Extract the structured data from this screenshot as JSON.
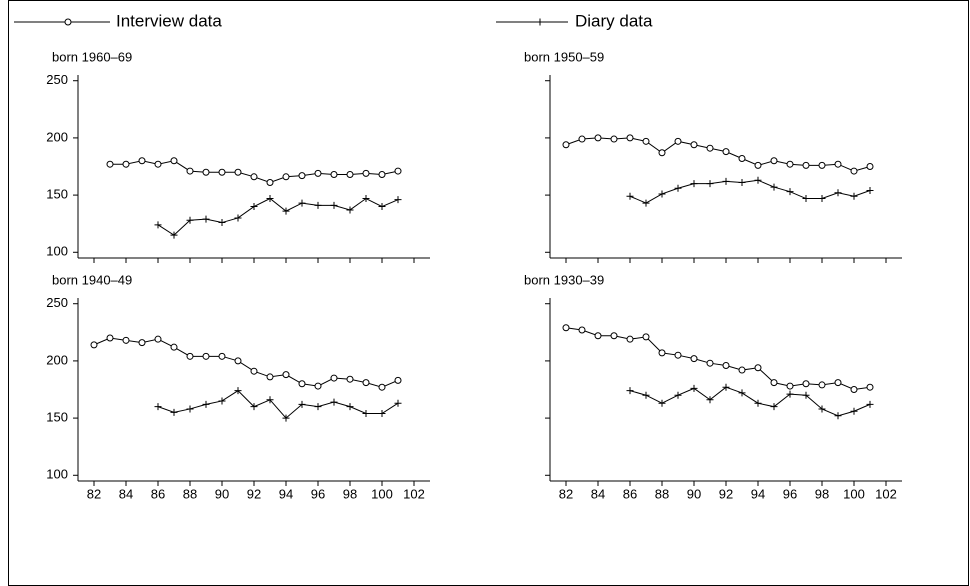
{
  "chart_data": [
    {
      "type": "line",
      "title": "born 1960–69",
      "show_xtick_labels": false,
      "show_ytick_labels": true,
      "x": [
        82,
        83,
        84,
        85,
        86,
        87,
        88,
        89,
        90,
        91,
        92,
        93,
        94,
        95,
        96,
        97,
        98,
        99,
        100,
        101
      ],
      "xlim": [
        81,
        103
      ],
      "xticks": [
        82,
        84,
        86,
        88,
        90,
        92,
        94,
        96,
        98,
        100,
        102
      ],
      "ylim": [
        95,
        255
      ],
      "yticks": [
        100,
        150,
        200,
        250
      ],
      "series": [
        {
          "name": "Interview data",
          "color": "#000000",
          "marker": "circle",
          "values": [
            null,
            177,
            177,
            180,
            177,
            180,
            171,
            170,
            170,
            170,
            166,
            161,
            166,
            167,
            169,
            168,
            168,
            169,
            168,
            171
          ]
        },
        {
          "name": "Diary data",
          "color": "#000000",
          "marker": "plus",
          "values": [
            null,
            null,
            null,
            null,
            124,
            115,
            128,
            129,
            126,
            130,
            140,
            147,
            136,
            143,
            141,
            141,
            137,
            147,
            140,
            146
          ]
        }
      ]
    },
    {
      "type": "line",
      "title": "born 1950–59",
      "show_xtick_labels": false,
      "show_ytick_labels": false,
      "x": [
        82,
        83,
        84,
        85,
        86,
        87,
        88,
        89,
        90,
        91,
        92,
        93,
        94,
        95,
        96,
        97,
        98,
        99,
        100,
        101
      ],
      "xlim": [
        81,
        103
      ],
      "xticks": [
        82,
        84,
        86,
        88,
        90,
        92,
        94,
        96,
        98,
        100,
        102
      ],
      "ylim": [
        95,
        255
      ],
      "yticks": [
        100,
        150,
        200,
        250
      ],
      "series": [
        {
          "name": "Interview data",
          "color": "#000000",
          "marker": "circle",
          "values": [
            194,
            199,
            200,
            199,
            200,
            197,
            187,
            197,
            194,
            191,
            188,
            182,
            176,
            180,
            177,
            176,
            176,
            177,
            171,
            175
          ]
        },
        {
          "name": "Diary data",
          "color": "#000000",
          "marker": "plus",
          "values": [
            null,
            null,
            null,
            null,
            149,
            143,
            151,
            156,
            160,
            160,
            162,
            161,
            163,
            157,
            153,
            147,
            147,
            152,
            149,
            154
          ]
        }
      ]
    },
    {
      "type": "line",
      "title": "born 1940–49",
      "show_xtick_labels": true,
      "show_ytick_labels": true,
      "x": [
        82,
        83,
        84,
        85,
        86,
        87,
        88,
        89,
        90,
        91,
        92,
        93,
        94,
        95,
        96,
        97,
        98,
        99,
        100,
        101
      ],
      "xlim": [
        81,
        103
      ],
      "xticks": [
        82,
        84,
        86,
        88,
        90,
        92,
        94,
        96,
        98,
        100,
        102
      ],
      "ylim": [
        95,
        255
      ],
      "yticks": [
        100,
        150,
        200,
        250
      ],
      "series": [
        {
          "name": "Interview data",
          "color": "#000000",
          "marker": "circle",
          "values": [
            214,
            220,
            218,
            216,
            219,
            212,
            204,
            204,
            204,
            200,
            191,
            186,
            188,
            180,
            178,
            185,
            184,
            181,
            177,
            183
          ]
        },
        {
          "name": "Diary data",
          "color": "#000000",
          "marker": "plus",
          "values": [
            null,
            null,
            null,
            null,
            160,
            155,
            158,
            162,
            165,
            174,
            160,
            166,
            150,
            162,
            160,
            164,
            160,
            154,
            154,
            163
          ]
        }
      ]
    },
    {
      "type": "line",
      "title": "born 1930–39",
      "show_xtick_labels": true,
      "show_ytick_labels": false,
      "x": [
        82,
        83,
        84,
        85,
        86,
        87,
        88,
        89,
        90,
        91,
        92,
        93,
        94,
        95,
        96,
        97,
        98,
        99,
        100,
        101
      ],
      "xlim": [
        81,
        103
      ],
      "xticks": [
        82,
        84,
        86,
        88,
        90,
        92,
        94,
        96,
        98,
        100,
        102
      ],
      "ylim": [
        95,
        255
      ],
      "yticks": [
        100,
        150,
        200,
        250
      ],
      "series": [
        {
          "name": "Interview data",
          "color": "#000000",
          "marker": "circle",
          "values": [
            229,
            227,
            222,
            222,
            219,
            221,
            207,
            205,
            202,
            198,
            196,
            192,
            194,
            181,
            178,
            180,
            179,
            181,
            175,
            177
          ]
        },
        {
          "name": "Diary data",
          "color": "#000000",
          "marker": "plus",
          "values": [
            null,
            null,
            null,
            null,
            174,
            170,
            163,
            170,
            176,
            166,
            177,
            172,
            163,
            160,
            171,
            170,
            158,
            152,
            156,
            162
          ]
        }
      ]
    }
  ]
}
